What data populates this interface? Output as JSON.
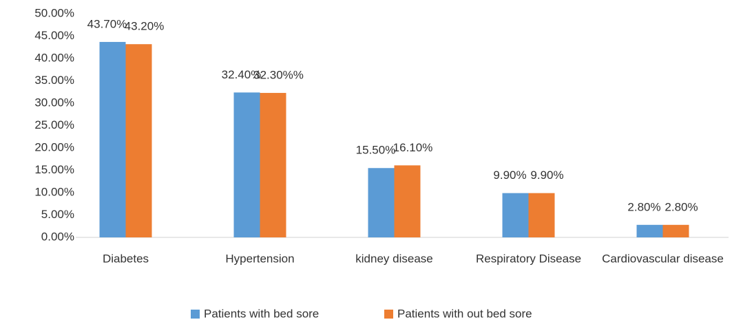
{
  "chart_data": {
    "type": "bar",
    "categories": [
      "Diabetes",
      "Hypertension",
      "kidney disease",
      "Respiratory Disease",
      "Cardiovascular disease"
    ],
    "series": [
      {
        "name": "Patients with bed sore",
        "color": "#5b9bd5",
        "values": [
          43.7,
          32.4,
          15.5,
          9.9,
          2.8
        ],
        "value_labels": [
          "43.70%",
          "32.40%",
          "15.50%",
          "9.90%",
          "2.80%"
        ]
      },
      {
        "name": "Patients with out bed sore",
        "color": "#ed7d31",
        "values": [
          43.2,
          32.3,
          16.1,
          9.9,
          2.8
        ],
        "value_labels": [
          "43.20%",
          "32.30%%",
          "16.10%",
          "9.90%",
          "2.80%"
        ]
      }
    ],
    "ylim": [
      0,
      50
    ],
    "yticks": [
      {
        "value": 0,
        "label": "0.00%"
      },
      {
        "value": 5,
        "label": "5.00%"
      },
      {
        "value": 10,
        "label": "10.00%"
      },
      {
        "value": 15,
        "label": "15.00%"
      },
      {
        "value": 20,
        "label": "20.00%"
      },
      {
        "value": 25,
        "label": "25.00%"
      },
      {
        "value": 30,
        "label": "30.00%"
      },
      {
        "value": 35,
        "label": "35.00%"
      },
      {
        "value": 40,
        "label": "40.00%"
      },
      {
        "value": 45,
        "label": "45.00%"
      },
      {
        "value": 50,
        "label": "50.00%"
      }
    ],
    "grid": false,
    "legend": "bottom"
  }
}
